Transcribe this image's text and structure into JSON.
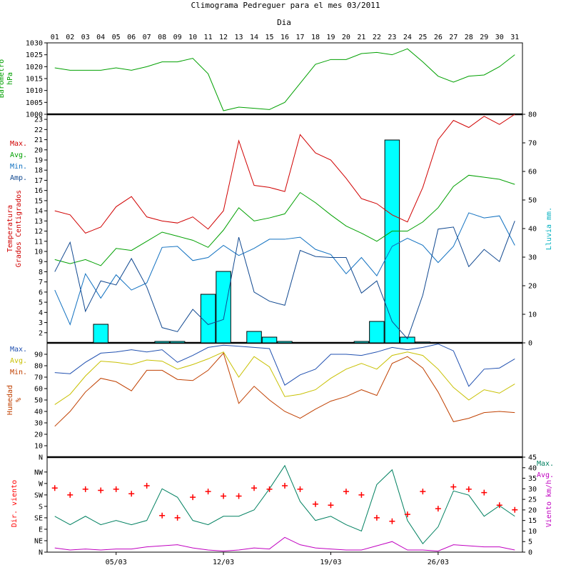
{
  "title": "Climograma Pedreguer para el mes 03/2011",
  "days_label": "Dia",
  "days": [
    "01",
    "02",
    "03",
    "04",
    "05",
    "06",
    "07",
    "08",
    "09",
    "10",
    "11",
    "12",
    "13",
    "14",
    "15",
    "16",
    "17",
    "18",
    "19",
    "20",
    "21",
    "22",
    "23",
    "24",
    "25",
    "26",
    "27",
    "28",
    "29",
    "30",
    "31"
  ],
  "week_labels": [
    "05/03",
    "12/03",
    "19/03",
    "26/03"
  ],
  "colors": {
    "max": "#d00000",
    "avg": "#00a000",
    "min": "#1070c0",
    "amp": "#104890",
    "rain": "#00ffff",
    "pressure": "#00a000",
    "hum_max": "#2050b0",
    "hum_avg": "#c8c000",
    "hum_min": "#c04000",
    "dir": "#ff0000",
    "wind_max": "#008060",
    "wind_avg": "#c000c0"
  },
  "chart_data": [
    {
      "type": "line",
      "name": "pressure",
      "ylabel": "Barometro hPa",
      "ylabel_lines": [
        "Barometro",
        "hPa"
      ],
      "ylim": [
        1000,
        1030
      ],
      "yticks": [
        1000,
        1005,
        1010,
        1015,
        1020,
        1025,
        1030
      ],
      "series": [
        {
          "values": [
            1019.5,
            1018.5,
            1018.5,
            1018.5,
            1019.5,
            1018.5,
            1020,
            1022,
            1022,
            1023.5,
            1017,
            1001.5,
            1003,
            1002.5,
            1002,
            1005,
            1013,
            1021,
            1023,
            1023,
            1025.5,
            1026,
            1025,
            1027.5,
            1022,
            1016,
            1013.5,
            1016,
            1016.5,
            1020,
            1025
          ]
        }
      ]
    },
    {
      "type": "line",
      "name": "temperature",
      "ylabel": "Temperatura Grados Centigrados",
      "ylabel_lines": [
        "Temperatura",
        "Grados Centigrados"
      ],
      "ylim": [
        1,
        23.5
      ],
      "yticks": [
        2,
        3,
        4,
        5,
        6,
        7,
        8,
        9,
        10,
        11,
        12,
        13,
        14,
        15,
        16,
        17,
        18,
        19,
        20,
        21,
        22,
        23
      ],
      "y2label": "Lluvia mm.",
      "y2lim": [
        0,
        80
      ],
      "y2ticks": [
        0,
        10,
        20,
        30,
        40,
        50,
        60,
        70,
        80
      ],
      "legend": [
        "Max.",
        "Avg.",
        "Min.",
        "Amp."
      ],
      "series": [
        {
          "name": "Max.",
          "values": [
            14,
            13.6,
            11.8,
            12.4,
            14.4,
            15.4,
            13.4,
            13,
            12.8,
            13.4,
            12.2,
            14,
            20.9,
            16.5,
            16.3,
            15.9,
            21.5,
            19.7,
            19,
            17.2,
            15.2,
            14.7,
            13.6,
            12.9,
            16.3,
            21,
            22.9,
            22.2,
            23.3,
            22.5,
            23.5
          ]
        },
        {
          "name": "Avg.",
          "values": [
            9.2,
            8.8,
            9.2,
            8.6,
            10.3,
            10.1,
            11,
            11.9,
            11.5,
            11.1,
            10.4,
            12.1,
            14.3,
            13,
            13.3,
            13.7,
            15.8,
            14.8,
            13.6,
            12.5,
            11.8,
            11,
            12,
            12,
            12.9,
            14.3,
            16.4,
            17.5,
            17.3,
            17.1,
            16.6
          ]
        },
        {
          "name": "Min.",
          "values": [
            6.2,
            2.8,
            7.8,
            5.4,
            7.7,
            6.2,
            6.9,
            10.4,
            10.5,
            9.1,
            9.4,
            10.6,
            9.6,
            10.3,
            11.2,
            11.2,
            11.4,
            10.2,
            9.7,
            7.8,
            9.4,
            7.6,
            10.5,
            11.3,
            10.6,
            8.9,
            10.5,
            13.8,
            13.3,
            13.5,
            10.6
          ]
        },
        {
          "name": "Amp.",
          "values": [
            8,
            10.9,
            4.1,
            7.1,
            6.7,
            9.3,
            6.5,
            2.5,
            2.1,
            4.3,
            2.8,
            3.3,
            11.4,
            6,
            5.1,
            4.7,
            10.1,
            9.5,
            9.4,
            9.4,
            5.9,
            7.1,
            3.1,
            1.4,
            5.7,
            12.2,
            12.4,
            8.5,
            10.2,
            9,
            13
          ]
        },
        {
          "name": "rain",
          "axis": "y2",
          "type": "bar",
          "values": [
            0,
            0,
            0,
            6.5,
            0,
            0,
            0,
            0.5,
            0.5,
            0,
            17,
            25,
            0,
            4,
            2,
            0.5,
            0,
            0,
            0,
            0,
            0.5,
            7.5,
            71,
            2,
            0.3,
            0,
            0,
            0,
            0,
            0,
            0
          ]
        }
      ]
    },
    {
      "type": "line",
      "name": "humidity",
      "ylabel": "Humedad %",
      "ylabel_lines": [
        "Humedad",
        "%"
      ],
      "ylim": [
        0,
        100
      ],
      "yticks": [
        10,
        20,
        30,
        40,
        50,
        60,
        70,
        80,
        90
      ],
      "top_tick": "N",
      "legend": [
        "Max.",
        "Avg.",
        "Min."
      ],
      "series": [
        {
          "name": "Max.",
          "values": [
            74,
            73,
            83,
            91,
            92,
            94,
            92,
            94,
            83,
            89,
            96,
            98,
            97,
            96,
            95,
            63,
            72,
            77,
            90,
            90,
            89,
            92,
            96,
            94,
            96,
            99,
            93,
            62,
            77,
            78,
            86
          ]
        },
        {
          "name": "Avg.",
          "values": [
            46,
            55,
            71,
            84,
            83,
            81,
            85,
            84,
            77,
            81,
            86,
            92,
            70,
            88,
            79,
            53,
            55,
            59,
            69,
            77,
            82,
            77,
            89,
            92,
            89,
            77,
            61,
            50,
            59,
            56,
            64
          ]
        },
        {
          "name": "Min.",
          "values": [
            27,
            40,
            57,
            69,
            66,
            58,
            76,
            76,
            68,
            67,
            76,
            91,
            47,
            62,
            50,
            40,
            34,
            42,
            49,
            53,
            59,
            54,
            82,
            88,
            78,
            57,
            31,
            34,
            39,
            40,
            39
          ]
        }
      ]
    },
    {
      "type": "scatter",
      "name": "wind",
      "ylabel": "Dir. viento",
      "ylim": [
        0,
        8
      ],
      "yticks": [
        "N",
        "NE",
        "E",
        "SE",
        "S",
        "SW",
        "W",
        "NW"
      ],
      "y2label": "Viento km/h",
      "y2lim": [
        0,
        45
      ],
      "y2ticks": [
        0,
        5,
        10,
        15,
        20,
        25,
        30,
        35,
        40,
        45
      ],
      "legend": [
        "Max.",
        "Avg."
      ],
      "series": [
        {
          "name": "dir",
          "values": [
            5.6,
            5,
            5.5,
            5.4,
            5.5,
            5.1,
            5.8,
            3.2,
            3,
            4.8,
            5.3,
            4.9,
            4.9,
            5.6,
            5.5,
            5.8,
            5.5,
            4.2,
            4.1,
            5.3,
            5,
            3,
            2.7,
            3.3,
            5.3,
            3.8,
            5.7,
            5.5,
            5.2,
            4.1,
            3.7
          ]
        },
        {
          "name": "Max.",
          "axis": "y2",
          "values": [
            17,
            13,
            17,
            13,
            15,
            13,
            15,
            30,
            26,
            15,
            13,
            17,
            17,
            20,
            30,
            41,
            24,
            15,
            17,
            13,
            10,
            32,
            39,
            15,
            4,
            12,
            29,
            27,
            17,
            22,
            17
          ]
        },
        {
          "name": "Avg.",
          "axis": "y2",
          "values": [
            2,
            1,
            1.5,
            1,
            1.5,
            1.5,
            2.5,
            3,
            3.5,
            2,
            1,
            0.5,
            1,
            2,
            1.5,
            7,
            3.5,
            2,
            1.5,
            1,
            1,
            3,
            5,
            1,
            1,
            0.5,
            3.5,
            3,
            2.5,
            2.5,
            1
          ]
        }
      ]
    }
  ]
}
